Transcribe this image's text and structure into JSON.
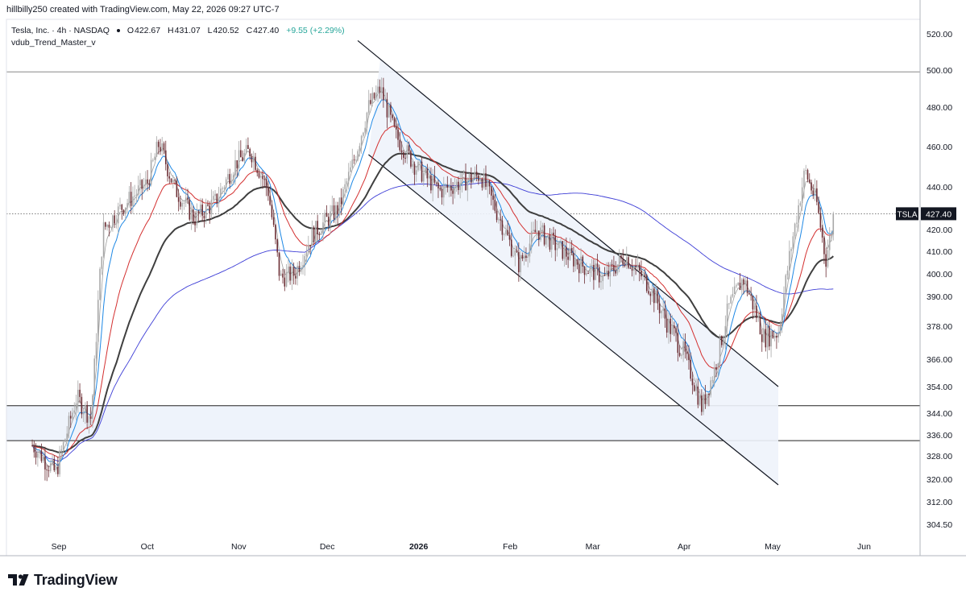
{
  "header": {
    "author": "hillbilly250",
    "created_with": "created with TradingView.com,",
    "timestamp": "May 22, 2026 09:27 UTC-7"
  },
  "legend": {
    "symbol_line": "Tesla, Inc. · 4h · NASDAQ",
    "open_label": "O",
    "open": "422.67",
    "high_label": "H",
    "high": "431.07",
    "low_label": "L",
    "low": "420.52",
    "close_label": "C",
    "close": "427.40",
    "change": "+9.55 (+2.29%)"
  },
  "indicator": {
    "name": "vdub_Trend_Master_v"
  },
  "price_tag": {
    "symbol": "TSLA",
    "price": "427.40"
  },
  "brand": {
    "name": "TradingView"
  },
  "colors": {
    "up": "#a8a8a8",
    "down": "#6b2d33",
    "ma_fast": "#1e88e5",
    "ma_mid": "#d32f2f",
    "ma_slow": "#3f3f3f",
    "ma_long": "#3d3dd6",
    "ma_grey": "#9e9e9e",
    "channel_fill": "#eef3fb"
  },
  "chart_data": {
    "type": "candlestick",
    "symbol": "TSLA",
    "interval": "4h",
    "ylim": [
      298,
      526
    ],
    "y_ticks": [
      520,
      500,
      480,
      460,
      440,
      420,
      410,
      400,
      390,
      378,
      366,
      354,
      344,
      336,
      328,
      320,
      312,
      304.5
    ],
    "x_ticks": [
      "Sep",
      "Oct",
      "Nov",
      "Dec",
      "2026",
      "Feb",
      "Mar",
      "Apr",
      "May",
      "Jun"
    ],
    "horizontal_levels": [
      499,
      346.8,
      333.8
    ],
    "support_zone": [
      333.8,
      346.8
    ],
    "channel": {
      "upper": {
        "from": [
          "Dec 19",
          506
        ],
        "to": [
          "May 3",
          354
        ]
      },
      "lower": {
        "from": [
          "Dec 15",
          456
        ],
        "to": [
          "May 3",
          318
        ]
      }
    },
    "last_price": 427.4,
    "ohlc_anchors": [
      {
        "date": "Aug 23",
        "close": 332
      },
      {
        "date": "Aug 31",
        "close": 322
      },
      {
        "date": "Sep 7",
        "close": 350
      },
      {
        "date": "Sep 12",
        "close": 342
      },
      {
        "date": "Sep 16",
        "close": 420
      },
      {
        "date": "Sep 22",
        "close": 430
      },
      {
        "date": "Oct 1",
        "close": 442
      },
      {
        "date": "Oct 5",
        "close": 462
      },
      {
        "date": "Oct 10",
        "close": 440
      },
      {
        "date": "Oct 17",
        "close": 425
      },
      {
        "date": "Oct 24",
        "close": 433
      },
      {
        "date": "Oct 31",
        "close": 452
      },
      {
        "date": "Nov 5",
        "close": 458
      },
      {
        "date": "Nov 11",
        "close": 438
      },
      {
        "date": "Nov 15",
        "close": 398
      },
      {
        "date": "Nov 20",
        "close": 400
      },
      {
        "date": "Nov 26",
        "close": 418
      },
      {
        "date": "Dec 5",
        "close": 430
      },
      {
        "date": "Dec 10",
        "close": 453
      },
      {
        "date": "Dec 15",
        "close": 480
      },
      {
        "date": "Dec 19",
        "close": 490
      },
      {
        "date": "Dec 24",
        "close": 466
      },
      {
        "date": "Dec 31",
        "close": 450
      },
      {
        "date": "Jan 8",
        "close": 438
      },
      {
        "date": "Jan 15",
        "close": 442
      },
      {
        "date": "Jan 22",
        "close": 446
      },
      {
        "date": "Jan 30",
        "close": 420
      },
      {
        "date": "Feb 4",
        "close": 404
      },
      {
        "date": "Feb 10",
        "close": 420
      },
      {
        "date": "Feb 17",
        "close": 412
      },
      {
        "date": "Feb 25",
        "close": 404
      },
      {
        "date": "Mar 5",
        "close": 398
      },
      {
        "date": "Mar 12",
        "close": 408
      },
      {
        "date": "Mar 20",
        "close": 395
      },
      {
        "date": "Mar 26",
        "close": 380
      },
      {
        "date": "Apr 1",
        "close": 368
      },
      {
        "date": "Apr 7",
        "close": 346
      },
      {
        "date": "Apr 11",
        "close": 360
      },
      {
        "date": "Apr 16",
        "close": 385
      },
      {
        "date": "Apr 21",
        "close": 398
      },
      {
        "date": "Apr 28",
        "close": 374
      },
      {
        "date": "May 3",
        "close": 376
      },
      {
        "date": "May 7",
        "close": 410
      },
      {
        "date": "May 12",
        "close": 448
      },
      {
        "date": "May 16",
        "close": 432
      },
      {
        "date": "May 19",
        "close": 406
      },
      {
        "date": "May 22",
        "close": 427.4
      }
    ]
  }
}
